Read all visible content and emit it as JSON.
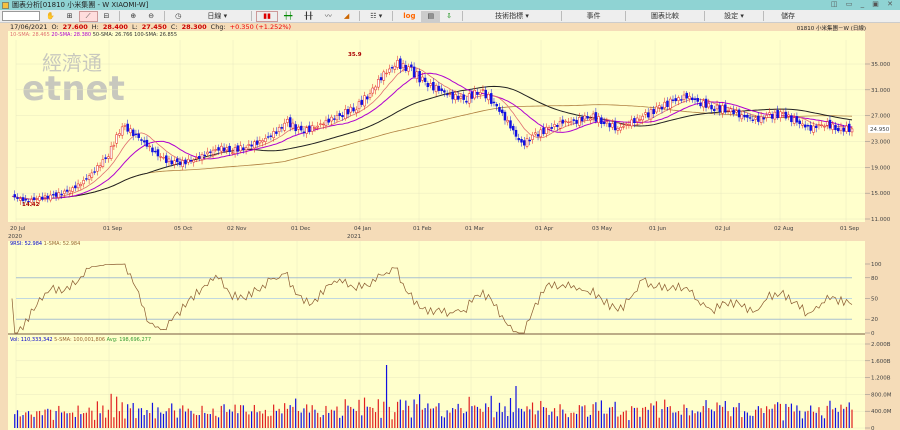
{
  "window": {
    "title": "圖表分析[01810 小米集團 - W XIAOMI-W]",
    "controls": "◫ ▭ _ ▣ ✕"
  },
  "toolbar": {
    "symbol_input": "",
    "interval": "日線 ▾",
    "log": "log",
    "indicators": "技術指標 ▾",
    "events": "事件",
    "compare": "圖表比較",
    "settings": "設定 ▾",
    "save": "儲存"
  },
  "info": {
    "date": "17/06/2021",
    "open_label": "O:",
    "open": "27.600",
    "high_label": "H:",
    "high": "28.400",
    "low_label": "L:",
    "low": "27.450",
    "close_label": "C:",
    "close": "28.300",
    "chg_label": "Chg:",
    "chg": "+0.350 (+1.252%)",
    "symbol": "01810 小米集團－W (日線)"
  },
  "legend": {
    "sma10": "10-SMA: 28.465",
    "sma20": "20-SMA: 28.380",
    "sma50": "50-SMA: 26.766",
    "sma100": "100-SMA: 26.855",
    "rsi": "9RSI: 52.984",
    "rsi_sma": "1-SMA: 52.984",
    "vol": "Vol: 110,333,342",
    "vol_sma": "5-SMA: 100,001,806",
    "vol_avg": "Avg: 198,696,277"
  },
  "watermark": {
    "chinese": "經濟通",
    "latin": "etnet"
  },
  "colors": {
    "up": "#e02020",
    "down": "#1010e0",
    "sma10": "#e07070",
    "sma20": "#b000d0",
    "sma50": "#222222",
    "sma100": "#b08040"
  },
  "chart_data": [
    {
      "type": "candlestick",
      "name": "price",
      "y_ticks": [
        "35.000",
        "31.000",
        "27.000",
        "23.000",
        "19.000",
        "15.000",
        "11.000"
      ],
      "ylim": [
        11,
        37
      ],
      "last_price": "24.950",
      "annotations": {
        "high": "35.9",
        "low": "14.42"
      },
      "x_ticks": [
        "20 Jul",
        "01 Sep",
        "05 Oct",
        "02 Nov",
        "01 Dec",
        "04 Jan",
        "01 Feb",
        "01 Mar",
        "01 Apr",
        "03 May",
        "01 Jun",
        "02 Jul",
        "02 Aug",
        "01 Sep"
      ],
      "x_years": [
        "2020",
        "2021"
      ],
      "weekly_close": [
        14.5,
        13.8,
        14.2,
        14.6,
        15.2,
        16.5,
        18.5,
        21,
        25.5,
        24,
        22,
        20.2,
        19.6,
        20,
        21,
        22,
        21.6,
        22.2,
        23,
        24.2,
        26,
        24.5,
        25.2,
        26.3,
        27.3,
        28.3,
        30.5,
        33.5,
        35,
        34,
        32,
        31,
        30,
        29.6,
        31,
        29,
        26,
        22.5,
        24,
        25,
        26,
        26.2,
        27,
        26,
        25,
        26,
        27,
        28.2,
        29.3,
        30,
        29,
        28.2,
        28,
        27,
        26.3,
        27,
        27.2,
        26,
        25,
        25.8,
        25,
        24.95
      ]
    },
    {
      "type": "line",
      "name": "rsi",
      "y_ticks": [
        "100",
        "80",
        "50",
        "20",
        "0"
      ],
      "ylim": [
        0,
        100
      ]
    },
    {
      "type": "bar",
      "name": "volume",
      "y_ticks": [
        "2.000B",
        "1.600B",
        "1.200B",
        "800.0M",
        "400.0M",
        "0"
      ],
      "ylim": [
        0,
        2000
      ]
    }
  ]
}
